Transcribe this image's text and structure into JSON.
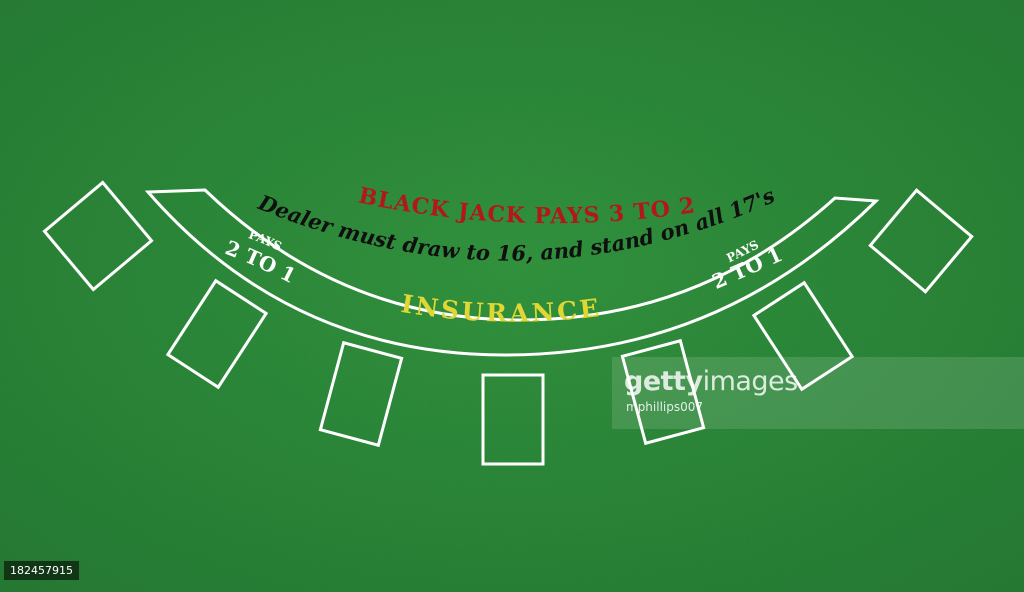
{
  "layout_text": {
    "blackjack": "BLACK JACK PAYS 3 TO 2",
    "dealer_rule": "Dealer must draw to 16, and stand on all 17's",
    "insurance": "INSURANCE",
    "pays_left_small": "PAYS",
    "pays_left_big": "2 TO 1",
    "pays_right_small": "PAYS",
    "pays_right_big": "2 TO 1"
  },
  "watermark": {
    "logo_bold": "getty",
    "logo_regular": "images",
    "credit": "mphillips007"
  },
  "image_id": "182457915",
  "colors": {
    "felt": "#2f8f3f",
    "felt_dark": "#237a32",
    "line": "#ffffff",
    "blackjack_text": "#b3161b",
    "dealer_text": "#0f0f0f",
    "insurance_text": "#e0d734",
    "pays_text": "#ffffff"
  }
}
